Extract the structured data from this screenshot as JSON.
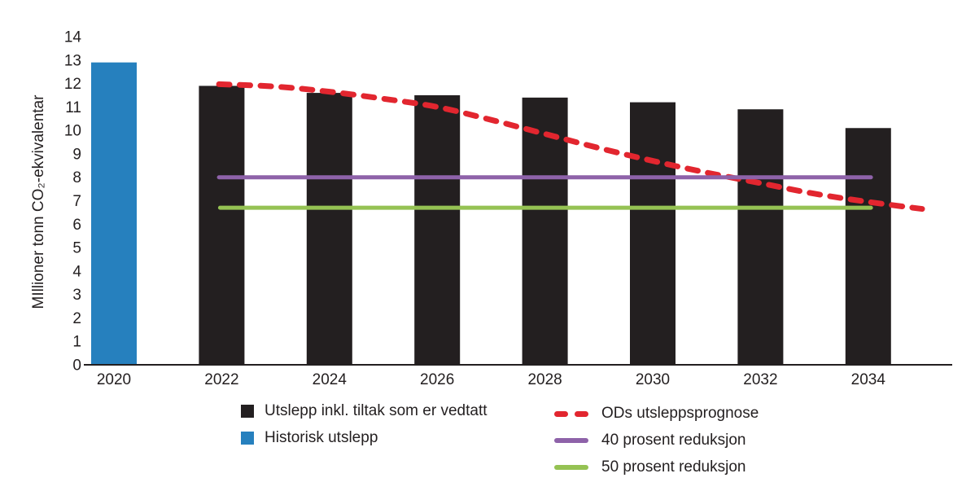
{
  "chart_data": {
    "type": "bar",
    "subtype": "bar+line combo",
    "title": "",
    "xlabel": "",
    "ylabel": "MIllioner tonn CO₂-ekvivalentar",
    "ylim": [
      0,
      14
    ],
    "yticks": [
      0,
      1,
      2,
      3,
      4,
      5,
      6,
      7,
      8,
      9,
      10,
      11,
      12,
      13,
      14
    ],
    "x_tick_labels": [
      "2020",
      "2022",
      "2024",
      "2026",
      "2028",
      "2030",
      "2032",
      "2034"
    ],
    "grid": "off",
    "legend_position": "bottom",
    "colors": {
      "historical_blue": "#2680BE",
      "bar_black": "#231F20",
      "prognosis_red": "#E2262F",
      "reduction40_purple": "#8E62A9",
      "reduction50_green": "#95C253",
      "axis_text": "#231F20"
    },
    "series": [
      {
        "name": "Historisk utslepp",
        "type": "bar",
        "color": "#2680BE",
        "data": [
          {
            "x": 2020,
            "y": 12.9
          }
        ]
      },
      {
        "name": "Utslepp inkl. tiltak som er vedtatt",
        "type": "bar",
        "color": "#231F20",
        "data": [
          {
            "x": 2022,
            "y": 11.9
          },
          {
            "x": 2024,
            "y": 11.6
          },
          {
            "x": 2026,
            "y": 11.5
          },
          {
            "x": 2028,
            "y": 11.4
          },
          {
            "x": 2030,
            "y": 11.2
          },
          {
            "x": 2032,
            "y": 10.9
          },
          {
            "x": 2034,
            "y": 10.1
          }
        ]
      },
      {
        "name": "ODs utsleppsprognose",
        "type": "line",
        "style": "dashed",
        "color": "#E2262F",
        "width": 7,
        "points": [
          [
            2021.95,
            11.97
          ],
          [
            2023,
            11.87
          ],
          [
            2024,
            11.65
          ],
          [
            2025,
            11.35
          ],
          [
            2026,
            11.0
          ],
          [
            2027,
            10.45
          ],
          [
            2028,
            9.85
          ],
          [
            2029,
            9.25
          ],
          [
            2030,
            8.7
          ],
          [
            2031,
            8.2
          ],
          [
            2032,
            7.75
          ],
          [
            2033,
            7.3
          ],
          [
            2034,
            6.95
          ],
          [
            2035,
            6.65
          ]
        ]
      },
      {
        "name": "40 prosent reduksjon",
        "type": "line",
        "style": "solid",
        "color": "#8E62A9",
        "width": 5,
        "points": [
          [
            2021.95,
            8.0
          ],
          [
            2034.05,
            8.0
          ]
        ]
      },
      {
        "name": "50 prosent reduksjon",
        "type": "line",
        "style": "solid",
        "color": "#95C253",
        "width": 5,
        "points": [
          [
            2021.97,
            6.7
          ],
          [
            2034.05,
            6.7
          ]
        ]
      }
    ],
    "legend": {
      "columns": [
        {
          "items": [
            {
              "swatch": "square",
              "color": "#231F20",
              "label": "Utslepp inkl. tiltak som er vedtatt"
            },
            {
              "swatch": "square",
              "color": "#2680BE",
              "label": "Historisk utslepp"
            }
          ]
        },
        {
          "items": [
            {
              "swatch": "dashed-line",
              "color": "#E2262F",
              "label": "ODs utsleppsprognose"
            },
            {
              "swatch": "line",
              "color": "#8E62A9",
              "label": "40 prosent reduksjon"
            },
            {
              "swatch": "line",
              "color": "#95C253",
              "label": "50 prosent reduksjon"
            }
          ]
        }
      ]
    }
  }
}
